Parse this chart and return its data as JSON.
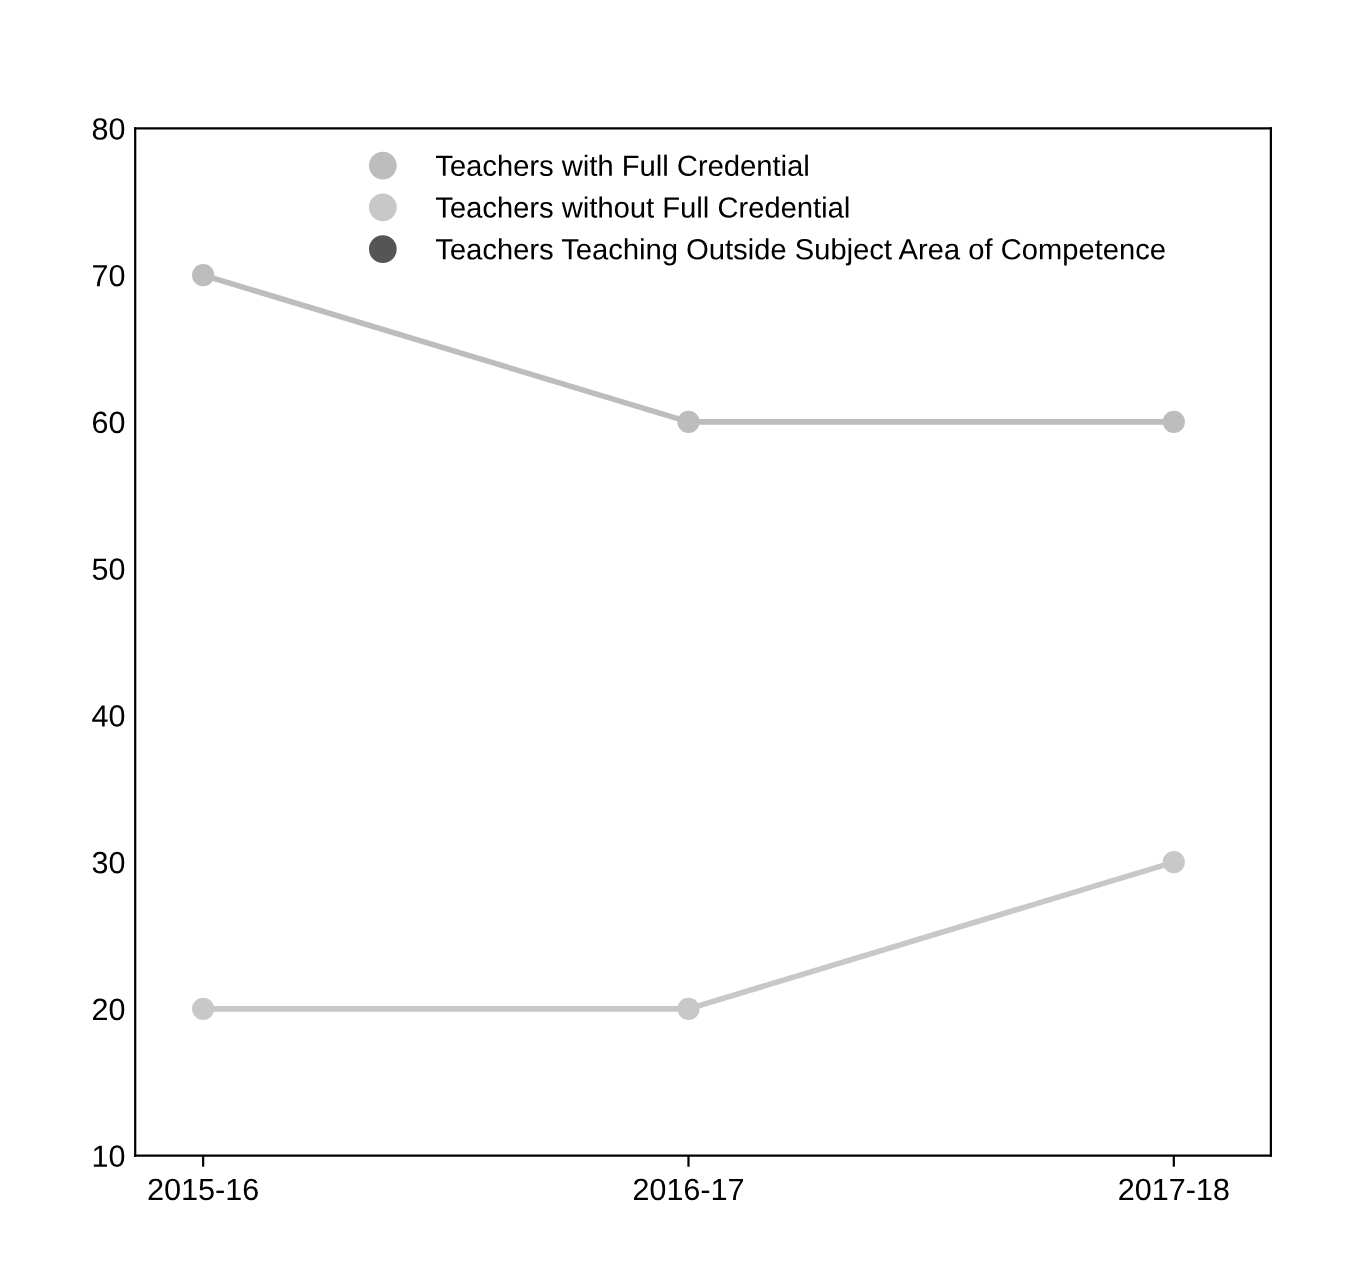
{
  "chart_data": {
    "type": "line",
    "categories": [
      "2015-16",
      "2016-17",
      "2017-18"
    ],
    "series": [
      {
        "name": "Teachers with Full Credential",
        "color": "#bdbdbd",
        "values": [
          70,
          60,
          60
        ]
      },
      {
        "name": "Teachers without Full Credential",
        "color": "#c8c8c8",
        "values": [
          20,
          20,
          30
        ]
      },
      {
        "name": "Teachers Teaching Outside Subject Area of Competence",
        "color": "#555555",
        "values": [
          null,
          null,
          null
        ]
      }
    ],
    "ylim": [
      10,
      80
    ],
    "yticks": [
      10,
      20,
      30,
      40,
      50,
      60,
      70,
      80
    ],
    "grid": false,
    "legend": "top",
    "marker": "circle",
    "line_style": "solid"
  }
}
